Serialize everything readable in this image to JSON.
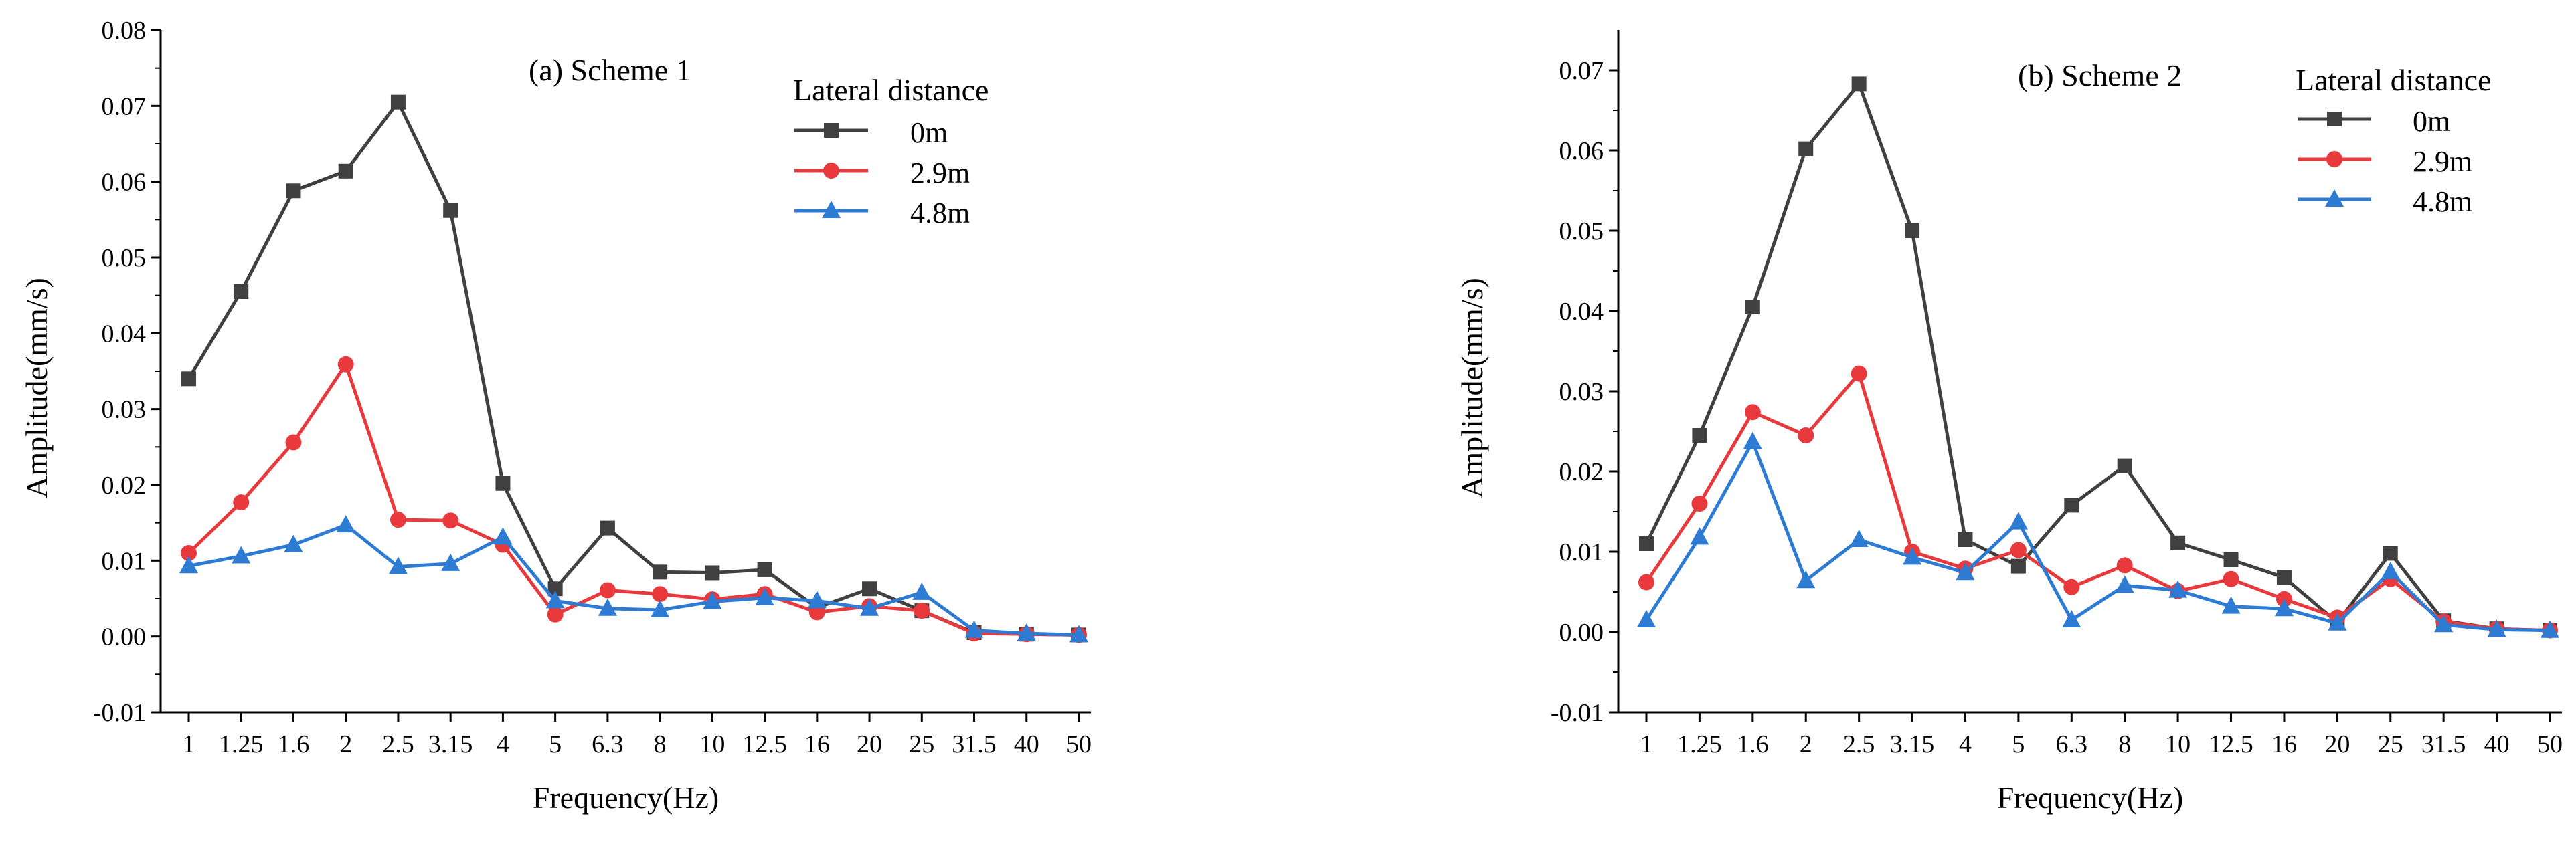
{
  "chart_data": [
    {
      "type": "line",
      "title": "(a) Scheme 1",
      "xlabel": "Frequency(Hz)",
      "ylabel": "Amplitude(mm/s)",
      "ylim": [
        -0.01,
        0.08
      ],
      "yticks": [
        "-0.01",
        "0.00",
        "0.01",
        "0.02",
        "0.03",
        "0.04",
        "0.05",
        "0.06",
        "0.07",
        "0.08"
      ],
      "categories": [
        "1",
        "1.25",
        "1.6",
        "2",
        "2.5",
        "3.15",
        "4",
        "5",
        "6.3",
        "8",
        "10",
        "12.5",
        "16",
        "20",
        "25",
        "31.5",
        "40",
        "50"
      ],
      "legend_title": "Lateral distance",
      "legend_position": "top-right",
      "series": [
        {
          "name": "0m",
          "color": "#404040",
          "marker": "square",
          "values": [
            0.034,
            0.0455,
            0.0588,
            0.0614,
            0.0705,
            0.0562,
            0.0202,
            0.0063,
            0.0143,
            0.0085,
            0.0084,
            0.0088,
            0.0038,
            0.0063,
            0.0034,
            0.0005,
            0.0003,
            0.0002
          ]
        },
        {
          "name": "2.9m",
          "color": "#e8393c",
          "marker": "circle",
          "values": [
            0.011,
            0.0177,
            0.0256,
            0.0359,
            0.0154,
            0.0153,
            0.0121,
            0.0029,
            0.0061,
            0.0056,
            0.0049,
            0.0056,
            0.0032,
            0.004,
            0.0034,
            0.0004,
            0.0003,
            0.0002
          ]
        },
        {
          "name": "4.8m",
          "color": "#2e7bd4",
          "marker": "triangle",
          "values": [
            0.0093,
            0.0106,
            0.0121,
            0.0147,
            0.0092,
            0.0096,
            0.0131,
            0.0047,
            0.0037,
            0.0035,
            0.0046,
            0.0051,
            0.0047,
            0.0037,
            0.0058,
            0.0008,
            0.0004,
            0.0002
          ]
        }
      ]
    },
    {
      "type": "line",
      "title": "(b) Scheme 2",
      "xlabel": "Frequency(Hz)",
      "ylabel": "Amplitude(mm/s)",
      "ylim": [
        -0.01,
        0.075
      ],
      "yticks": [
        "-0.01",
        "0.00",
        "0.01",
        "0.02",
        "0.03",
        "0.04",
        "0.05",
        "0.06",
        "0.07"
      ],
      "categories": [
        "1",
        "1.25",
        "1.6",
        "2",
        "2.5",
        "3.15",
        "4",
        "5",
        "6.3",
        "8",
        "10",
        "12.5",
        "16",
        "20",
        "25",
        "31.5",
        "40",
        "50"
      ],
      "legend_title": "Lateral distance",
      "legend_position": "top-right",
      "series": [
        {
          "name": "0m",
          "color": "#404040",
          "marker": "square",
          "values": [
            0.011,
            0.0245,
            0.0405,
            0.0602,
            0.0683,
            0.05,
            0.0115,
            0.0082,
            0.0158,
            0.0207,
            0.0111,
            0.009,
            0.0068,
            0.0012,
            0.0098,
            0.0014,
            0.0004,
            0.0002
          ]
        },
        {
          "name": "2.9m",
          "color": "#e8393c",
          "marker": "circle",
          "values": [
            0.0062,
            0.016,
            0.0274,
            0.0245,
            0.0322,
            0.01,
            0.0079,
            0.0102,
            0.0056,
            0.0083,
            0.0051,
            0.0066,
            0.0041,
            0.0018,
            0.0066,
            0.0013,
            0.0004,
            0.0002
          ]
        },
        {
          "name": "4.8m",
          "color": "#2e7bd4",
          "marker": "triangle",
          "values": [
            0.0015,
            0.0118,
            0.0237,
            0.0064,
            0.0115,
            0.0093,
            0.0074,
            0.0137,
            0.0015,
            0.0058,
            0.0052,
            0.0032,
            0.0029,
            0.0011,
            0.0075,
            0.0009,
            0.0003,
            0.0002
          ]
        }
      ]
    }
  ]
}
